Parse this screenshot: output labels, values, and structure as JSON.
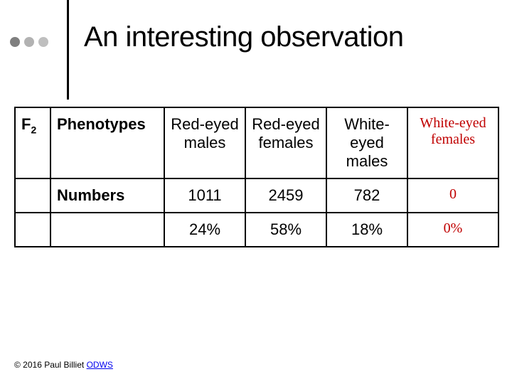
{
  "slide": {
    "title": "An interesting observation",
    "dot_colors": [
      "#7f7f7f",
      "#b2b2b2",
      "#bfbfbf"
    ],
    "vline_color": "#000000"
  },
  "table": {
    "type": "table",
    "border_color": "#000000",
    "red_text_color": "#c00000",
    "columns": [
      "",
      "",
      "",
      "",
      "",
      ""
    ],
    "rows": [
      {
        "c0_html": "F<sub>2</sub>",
        "c1": "Phenotypes",
        "c2": "Red-eyed males",
        "c3": "Red-eyed females",
        "c4": "White-eyed males",
        "c5": "White-eyed females",
        "c5_red": true
      },
      {
        "c0": "",
        "c1": "Numbers",
        "c2": "1011",
        "c3": "2459",
        "c4": "782",
        "c5": "0",
        "c5_red": true
      },
      {
        "c0": "",
        "c1": "",
        "c2": "24%",
        "c3": "58%",
        "c4": "18%",
        "c5": "0%",
        "c5_red": true
      }
    ]
  },
  "footer": {
    "prefix": "© 2016 Paul Billiet ",
    "link_text": "ODWS"
  }
}
